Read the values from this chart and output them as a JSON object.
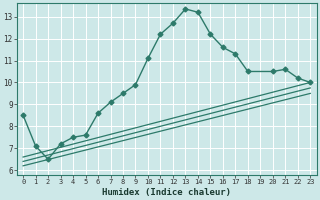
{
  "xlabel": "Humidex (Indice chaleur)",
  "xlim": [
    -0.5,
    23.5
  ],
  "ylim": [
    5.8,
    13.6
  ],
  "yticks": [
    6,
    7,
    8,
    9,
    10,
    11,
    12,
    13
  ],
  "xticks": [
    0,
    1,
    2,
    3,
    4,
    5,
    6,
    7,
    8,
    9,
    10,
    11,
    12,
    13,
    14,
    15,
    16,
    17,
    18,
    19,
    20,
    21,
    22,
    23
  ],
  "bg_color": "#cde8e8",
  "grid_color": "#ffffff",
  "line_color": "#2d7a6a",
  "series1_x": [
    0,
    1,
    2,
    3,
    4,
    5,
    6,
    7,
    8,
    9,
    10,
    11,
    12,
    13,
    14,
    15,
    16,
    17,
    18,
    20,
    21,
    22,
    23
  ],
  "series1_y": [
    8.5,
    7.1,
    6.5,
    7.2,
    7.5,
    7.6,
    8.6,
    9.1,
    9.5,
    9.9,
    11.1,
    12.2,
    12.7,
    13.35,
    13.2,
    12.2,
    11.6,
    11.3,
    10.5,
    10.5,
    10.6,
    10.2,
    10.0
  ],
  "series2_x": [
    0,
    23
  ],
  "series2_y": [
    6.6,
    10.0
  ],
  "series3_x": [
    0,
    23
  ],
  "series3_y": [
    6.4,
    9.75
  ],
  "series4_x": [
    0,
    23
  ],
  "series4_y": [
    6.2,
    9.5
  ]
}
